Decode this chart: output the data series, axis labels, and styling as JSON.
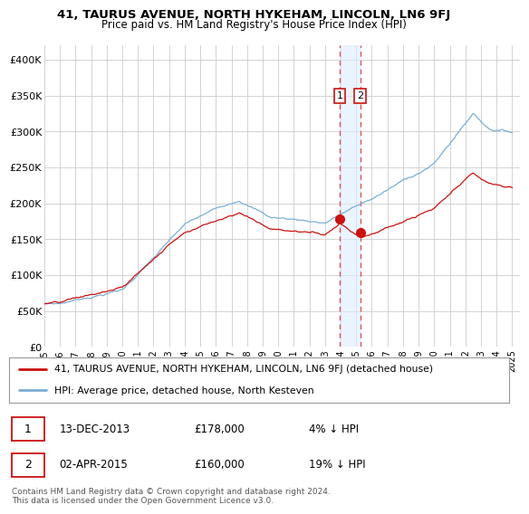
{
  "title": "41, TAURUS AVENUE, NORTH HYKEHAM, LINCOLN, LN6 9FJ",
  "subtitle": "Price paid vs. HM Land Registry's House Price Index (HPI)",
  "ylabel_ticks": [
    "£0",
    "£50K",
    "£100K",
    "£150K",
    "£200K",
    "£250K",
    "£300K",
    "£350K",
    "£400K"
  ],
  "ytick_values": [
    0,
    50000,
    100000,
    150000,
    200000,
    250000,
    300000,
    350000,
    400000
  ],
  "ylim": [
    0,
    420000
  ],
  "xlim_start": 1995.0,
  "xlim_end": 2025.5,
  "hpi_color": "#7BAFD4",
  "price_color": "#CC1111",
  "sale1_date": "13-DEC-2013",
  "sale1_price": "£178,000",
  "sale1_rel": "4% ↓ HPI",
  "sale1_year": 2013.95,
  "sale1_value": 178000,
  "sale2_date": "02-APR-2015",
  "sale2_price": "£160,000",
  "sale2_rel": "19% ↓ HPI",
  "sale2_year": 2015.25,
  "sale2_value": 160000,
  "vline_color": "#DD4444",
  "vline_fill": "#DDEEFF",
  "legend_label1": "41, TAURUS AVENUE, NORTH HYKEHAM, LINCOLN, LN6 9FJ (detached house)",
  "legend_label2": "HPI: Average price, detached house, North Kesteven",
  "footer": "Contains HM Land Registry data © Crown copyright and database right 2024.\nThis data is licensed under the Open Government Licence v3.0.",
  "background_color": "#FFFFFF",
  "grid_color": "#CCCCCC",
  "xticks": [
    1995,
    1996,
    1997,
    1998,
    1999,
    2000,
    2001,
    2002,
    2003,
    2004,
    2005,
    2006,
    2007,
    2008,
    2009,
    2010,
    2011,
    2012,
    2013,
    2014,
    2015,
    2016,
    2017,
    2018,
    2019,
    2020,
    2021,
    2022,
    2023,
    2024,
    2025
  ]
}
